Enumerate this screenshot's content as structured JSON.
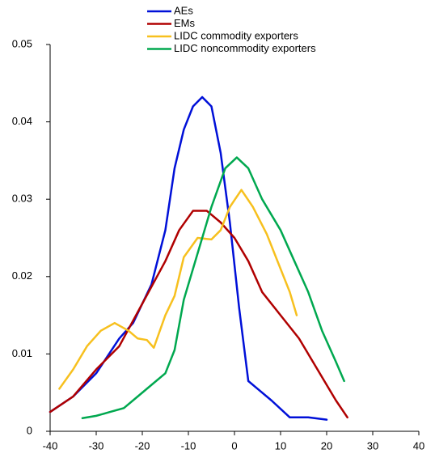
{
  "chart_data": {
    "type": "line",
    "xlim": [
      -40,
      40
    ],
    "xticks": [
      -40,
      -30,
      -20,
      -10,
      0,
      10,
      20,
      30,
      40
    ],
    "ylim": [
      0,
      0.05
    ],
    "yticks": [
      0,
      0.01,
      0.02,
      0.03,
      0.04,
      0.05
    ],
    "legend": "upper center",
    "series": [
      {
        "name": "AEs",
        "color": "#0010d8",
        "x": [
          -40,
          -35,
          -30,
          -25,
          -22,
          -18,
          -15,
          -13,
          -11,
          -9,
          -7,
          -5,
          -3,
          -1,
          1,
          3,
          5,
          8,
          12,
          16,
          20
        ],
        "values": [
          0.0025,
          0.0045,
          0.0075,
          0.012,
          0.014,
          0.019,
          0.026,
          0.034,
          0.039,
          0.042,
          0.0432,
          0.042,
          0.036,
          0.027,
          0.016,
          0.0065,
          0.0055,
          0.004,
          0.0018,
          0.0018,
          0.0015
        ]
      },
      {
        "name": "EMs",
        "color": "#b00000",
        "x": [
          -40,
          -35,
          -30,
          -25,
          -20,
          -15,
          -12,
          -9,
          -6,
          -3,
          0,
          3,
          6,
          10,
          14,
          18,
          22,
          24.5
        ],
        "values": [
          0.0025,
          0.0045,
          0.008,
          0.011,
          0.0165,
          0.022,
          0.026,
          0.0285,
          0.0285,
          0.027,
          0.025,
          0.022,
          0.018,
          0.015,
          0.012,
          0.008,
          0.004,
          0.0018
        ]
      },
      {
        "name": "LIDC commodity exporters",
        "color": "#f7c01e",
        "x": [
          -38,
          -35,
          -32,
          -29,
          -26,
          -23,
          -21,
          -19,
          -17.5,
          -15,
          -13,
          -11,
          -8,
          -5,
          -3,
          -1,
          1.5,
          4,
          7,
          10,
          12,
          13.5
        ],
        "values": [
          0.0055,
          0.008,
          0.011,
          0.013,
          0.014,
          0.013,
          0.012,
          0.0118,
          0.0108,
          0.015,
          0.0175,
          0.0225,
          0.025,
          0.0248,
          0.026,
          0.029,
          0.0312,
          0.029,
          0.0255,
          0.021,
          0.018,
          0.015
        ]
      },
      {
        "name": "LIDC noncommodity exporters",
        "color": "#00a84f",
        "x": [
          -33,
          -30,
          -27,
          -24,
          -21,
          -18,
          -15,
          -13,
          -11,
          -8,
          -5,
          -2,
          0.5,
          3,
          6,
          8,
          10,
          13,
          16,
          19,
          22,
          23.8
        ],
        "values": [
          0.0017,
          0.002,
          0.0025,
          0.003,
          0.0045,
          0.006,
          0.0075,
          0.0105,
          0.017,
          0.023,
          0.029,
          0.034,
          0.0354,
          0.034,
          0.03,
          0.028,
          0.026,
          0.022,
          0.018,
          0.013,
          0.009,
          0.0065
        ]
      }
    ]
  }
}
